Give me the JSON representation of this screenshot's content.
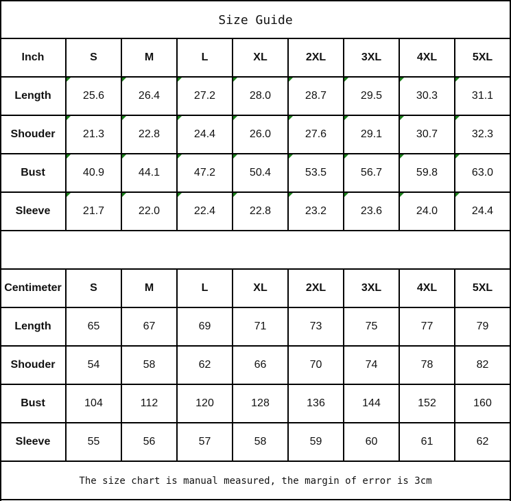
{
  "title": "Size Guide",
  "sizes": [
    "S",
    "M",
    "L",
    "XL",
    "2XL",
    "3XL",
    "4XL",
    "5XL"
  ],
  "tables": [
    {
      "unit": "Inch",
      "rows": [
        {
          "label": "Length",
          "values": [
            "25.6",
            "26.4",
            "27.2",
            "28.0",
            "28.7",
            "29.5",
            "30.3",
            "31.1"
          ]
        },
        {
          "label": "Shouder",
          "values": [
            "21.3",
            "22.8",
            "24.4",
            "26.0",
            "27.6",
            "29.1",
            "30.7",
            "32.3"
          ]
        },
        {
          "label": "Bust",
          "values": [
            "40.9",
            "44.1",
            "47.2",
            "50.4",
            "53.5",
            "56.7",
            "59.8",
            "63.0"
          ]
        },
        {
          "label": "Sleeve",
          "values": [
            "21.7",
            "22.0",
            "22.4",
            "22.8",
            "23.2",
            "23.6",
            "24.0",
            "24.4"
          ]
        }
      ]
    },
    {
      "unit": "Centimeter",
      "rows": [
        {
          "label": "Length",
          "values": [
            "65",
            "67",
            "69",
            "71",
            "73",
            "75",
            "77",
            "79"
          ]
        },
        {
          "label": "Shouder",
          "values": [
            "54",
            "58",
            "62",
            "66",
            "70",
            "74",
            "78",
            "82"
          ]
        },
        {
          "label": "Bust",
          "values": [
            "104",
            "112",
            "120",
            "128",
            "136",
            "144",
            "152",
            "160"
          ]
        },
        {
          "label": "Sleeve",
          "values": [
            "55",
            "56",
            "57",
            "58",
            "59",
            "60",
            "61",
            "62"
          ]
        }
      ]
    }
  ],
  "note": "The size chart is manual measured, the margin of error is 3cm",
  "colors": {
    "border": "#000000",
    "text_marker": "#1a7f1a"
  }
}
